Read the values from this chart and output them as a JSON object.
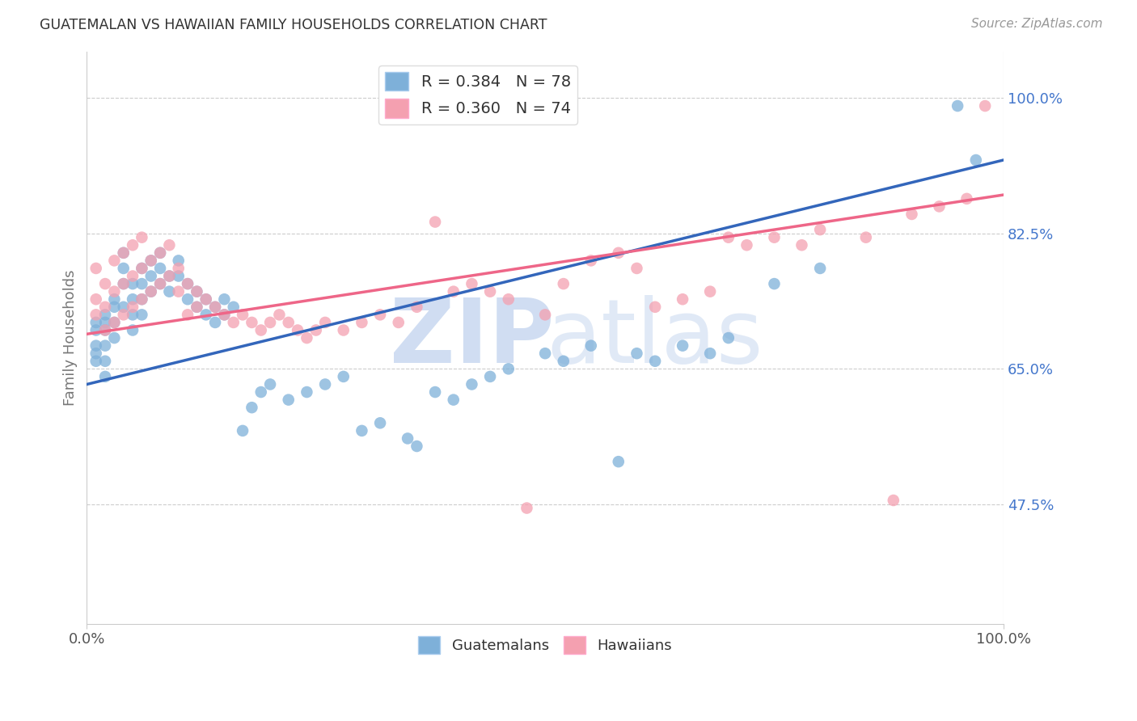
{
  "title": "GUATEMALAN VS HAWAIIAN FAMILY HOUSEHOLDS CORRELATION CHART",
  "source": "Source: ZipAtlas.com",
  "ylabel": "Family Households",
  "ytick_labels": [
    "100.0%",
    "82.5%",
    "65.0%",
    "47.5%"
  ],
  "ytick_values": [
    1.0,
    0.825,
    0.65,
    0.475
  ],
  "blue_color": "#7EB0D9",
  "pink_color": "#F4A0B0",
  "blue_line_color": "#3366BB",
  "pink_line_color": "#EE6688",
  "blue_R": 0.384,
  "pink_R": 0.36,
  "blue_N": 78,
  "pink_N": 74,
  "background_color": "#FFFFFF",
  "grid_color": "#CCCCCC",
  "ytick_color": "#4477CC",
  "blue_scatter_x": [
    0.01,
    0.01,
    0.01,
    0.01,
    0.01,
    0.02,
    0.02,
    0.02,
    0.02,
    0.02,
    0.02,
    0.03,
    0.03,
    0.03,
    0.03,
    0.04,
    0.04,
    0.04,
    0.04,
    0.05,
    0.05,
    0.05,
    0.05,
    0.06,
    0.06,
    0.06,
    0.06,
    0.07,
    0.07,
    0.07,
    0.08,
    0.08,
    0.08,
    0.09,
    0.09,
    0.1,
    0.1,
    0.11,
    0.11,
    0.12,
    0.12,
    0.13,
    0.13,
    0.14,
    0.14,
    0.15,
    0.15,
    0.16,
    0.17,
    0.18,
    0.19,
    0.2,
    0.22,
    0.24,
    0.26,
    0.28,
    0.3,
    0.32,
    0.35,
    0.36,
    0.38,
    0.4,
    0.42,
    0.44,
    0.46,
    0.5,
    0.52,
    0.55,
    0.58,
    0.6,
    0.62,
    0.65,
    0.68,
    0.7,
    0.75,
    0.8,
    0.95,
    0.97
  ],
  "blue_scatter_y": [
    0.71,
    0.7,
    0.68,
    0.67,
    0.66,
    0.72,
    0.71,
    0.7,
    0.68,
    0.66,
    0.64,
    0.74,
    0.73,
    0.71,
    0.69,
    0.8,
    0.78,
    0.76,
    0.73,
    0.76,
    0.74,
    0.72,
    0.7,
    0.78,
    0.76,
    0.74,
    0.72,
    0.79,
    0.77,
    0.75,
    0.8,
    0.78,
    0.76,
    0.77,
    0.75,
    0.79,
    0.77,
    0.76,
    0.74,
    0.75,
    0.73,
    0.74,
    0.72,
    0.73,
    0.71,
    0.74,
    0.72,
    0.73,
    0.57,
    0.6,
    0.62,
    0.63,
    0.61,
    0.62,
    0.63,
    0.64,
    0.57,
    0.58,
    0.56,
    0.55,
    0.62,
    0.61,
    0.63,
    0.64,
    0.65,
    0.67,
    0.66,
    0.68,
    0.53,
    0.67,
    0.66,
    0.68,
    0.67,
    0.69,
    0.76,
    0.78,
    0.99,
    0.92
  ],
  "pink_scatter_x": [
    0.01,
    0.01,
    0.01,
    0.02,
    0.02,
    0.02,
    0.03,
    0.03,
    0.03,
    0.04,
    0.04,
    0.04,
    0.05,
    0.05,
    0.05,
    0.06,
    0.06,
    0.06,
    0.07,
    0.07,
    0.08,
    0.08,
    0.09,
    0.09,
    0.1,
    0.1,
    0.11,
    0.11,
    0.12,
    0.12,
    0.13,
    0.14,
    0.15,
    0.16,
    0.17,
    0.18,
    0.19,
    0.2,
    0.21,
    0.22,
    0.23,
    0.24,
    0.25,
    0.26,
    0.28,
    0.3,
    0.32,
    0.34,
    0.36,
    0.38,
    0.4,
    0.42,
    0.44,
    0.46,
    0.48,
    0.5,
    0.52,
    0.55,
    0.58,
    0.6,
    0.62,
    0.65,
    0.68,
    0.7,
    0.72,
    0.75,
    0.78,
    0.8,
    0.85,
    0.88,
    0.9,
    0.93,
    0.96,
    0.98
  ],
  "pink_scatter_y": [
    0.72,
    0.74,
    0.78,
    0.7,
    0.73,
    0.76,
    0.71,
    0.75,
    0.79,
    0.72,
    0.76,
    0.8,
    0.73,
    0.77,
    0.81,
    0.74,
    0.78,
    0.82,
    0.75,
    0.79,
    0.76,
    0.8,
    0.77,
    0.81,
    0.78,
    0.75,
    0.76,
    0.72,
    0.75,
    0.73,
    0.74,
    0.73,
    0.72,
    0.71,
    0.72,
    0.71,
    0.7,
    0.71,
    0.72,
    0.71,
    0.7,
    0.69,
    0.7,
    0.71,
    0.7,
    0.71,
    0.72,
    0.71,
    0.73,
    0.84,
    0.75,
    0.76,
    0.75,
    0.74,
    0.47,
    0.72,
    0.76,
    0.79,
    0.8,
    0.78,
    0.73,
    0.74,
    0.75,
    0.82,
    0.81,
    0.82,
    0.81,
    0.83,
    0.82,
    0.48,
    0.85,
    0.86,
    0.87,
    0.99
  ]
}
